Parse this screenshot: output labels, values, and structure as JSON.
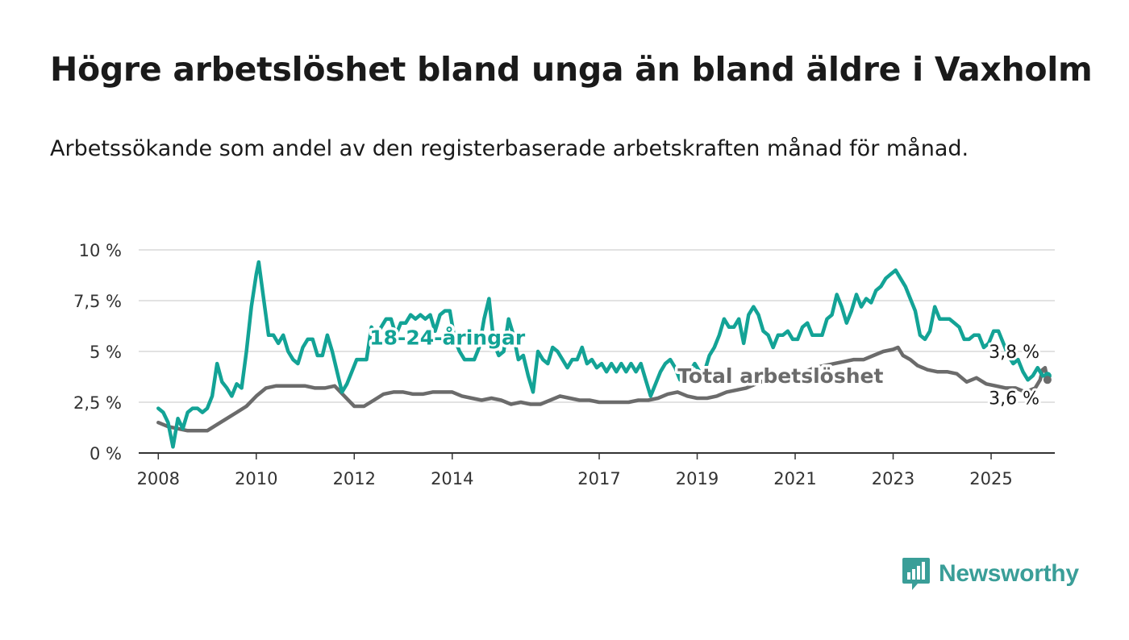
{
  "header": {
    "title": "Högre arbetslöshet bland unga än bland äldre i Vaxholm",
    "subtitle": "Arbetssökande som andel av den registerbaserade arbetskraften månad för månad."
  },
  "brand": {
    "name": "Newsworthy",
    "icon": "bar-chart-speech-bubble-icon",
    "color": "#3a9e98"
  },
  "chart_data": {
    "type": "line",
    "title": "",
    "xlabel": "",
    "ylabel": "",
    "xlim": [
      2007.6,
      2026.3
    ],
    "ylim": [
      0,
      10
    ],
    "x_ticks": [
      2008,
      2010,
      2012,
      2014,
      2017,
      2019,
      2021,
      2023,
      2025
    ],
    "x_tick_labels": [
      "2008",
      "2010",
      "2012",
      "2014",
      "2017",
      "2019",
      "2021",
      "2023",
      "2025"
    ],
    "y_ticks": [
      0,
      2.5,
      5,
      7.5,
      10
    ],
    "y_tick_labels": [
      "0 %",
      "2,5 %",
      "5 %",
      "7,5 %",
      "10 %"
    ],
    "grid": "horizontal",
    "series": [
      {
        "name": "18-24-åringar",
        "color": "#13a396",
        "end_label": "3,8 %",
        "points": [
          [
            2008.0,
            2.2
          ],
          [
            2008.1,
            2.0
          ],
          [
            2008.2,
            1.5
          ],
          [
            2008.3,
            0.3
          ],
          [
            2008.4,
            1.7
          ],
          [
            2008.5,
            1.2
          ],
          [
            2008.6,
            2.0
          ],
          [
            2008.7,
            2.2
          ],
          [
            2008.8,
            2.2
          ],
          [
            2008.9,
            2.0
          ],
          [
            2009.0,
            2.2
          ],
          [
            2009.1,
            2.8
          ],
          [
            2009.2,
            4.4
          ],
          [
            2009.3,
            3.5
          ],
          [
            2009.4,
            3.2
          ],
          [
            2009.5,
            2.8
          ],
          [
            2009.6,
            3.4
          ],
          [
            2009.7,
            3.2
          ],
          [
            2009.8,
            5.0
          ],
          [
            2009.9,
            7.2
          ],
          [
            2010.0,
            8.8
          ],
          [
            2010.05,
            9.4
          ],
          [
            2010.15,
            7.6
          ],
          [
            2010.25,
            5.8
          ],
          [
            2010.35,
            5.8
          ],
          [
            2010.45,
            5.4
          ],
          [
            2010.55,
            5.8
          ],
          [
            2010.65,
            5.0
          ],
          [
            2010.75,
            4.6
          ],
          [
            2010.85,
            4.4
          ],
          [
            2010.95,
            5.2
          ],
          [
            2011.05,
            5.6
          ],
          [
            2011.15,
            5.6
          ],
          [
            2011.25,
            4.8
          ],
          [
            2011.35,
            4.8
          ],
          [
            2011.45,
            5.8
          ],
          [
            2011.55,
            5.0
          ],
          [
            2011.65,
            4.0
          ],
          [
            2011.75,
            3.0
          ],
          [
            2011.85,
            3.4
          ],
          [
            2011.95,
            4.0
          ],
          [
            2012.05,
            4.6
          ],
          [
            2012.15,
            4.6
          ],
          [
            2012.25,
            4.6
          ],
          [
            2012.35,
            6.2
          ],
          [
            2012.45,
            5.8
          ],
          [
            2012.55,
            6.2
          ],
          [
            2012.65,
            6.6
          ],
          [
            2012.75,
            6.6
          ],
          [
            2012.85,
            5.8
          ],
          [
            2012.95,
            6.4
          ],
          [
            2013.05,
            6.4
          ],
          [
            2013.15,
            6.8
          ],
          [
            2013.25,
            6.6
          ],
          [
            2013.35,
            6.8
          ],
          [
            2013.45,
            6.6
          ],
          [
            2013.55,
            6.8
          ],
          [
            2013.65,
            6.0
          ],
          [
            2013.75,
            6.8
          ],
          [
            2013.85,
            7.0
          ],
          [
            2013.95,
            7.0
          ],
          [
            2014.05,
            5.6
          ],
          [
            2014.15,
            5.0
          ],
          [
            2014.25,
            4.6
          ],
          [
            2014.35,
            4.6
          ],
          [
            2014.45,
            4.6
          ],
          [
            2014.55,
            5.2
          ],
          [
            2014.65,
            6.6
          ],
          [
            2014.75,
            7.6
          ],
          [
            2014.85,
            5.4
          ],
          [
            2014.95,
            4.8
          ],
          [
            2015.05,
            5.0
          ],
          [
            2015.15,
            6.6
          ],
          [
            2015.25,
            5.8
          ],
          [
            2015.35,
            4.6
          ],
          [
            2015.45,
            4.8
          ],
          [
            2015.55,
            3.8
          ],
          [
            2015.65,
            3.0
          ],
          [
            2015.75,
            5.0
          ],
          [
            2015.85,
            4.6
          ],
          [
            2015.95,
            4.4
          ],
          [
            2016.05,
            5.2
          ],
          [
            2016.15,
            5.0
          ],
          [
            2016.25,
            4.6
          ],
          [
            2016.35,
            4.2
          ],
          [
            2016.45,
            4.6
          ],
          [
            2016.55,
            4.6
          ],
          [
            2016.65,
            5.2
          ],
          [
            2016.75,
            4.4
          ],
          [
            2016.85,
            4.6
          ],
          [
            2016.95,
            4.2
          ],
          [
            2017.05,
            4.4
          ],
          [
            2017.15,
            4.0
          ],
          [
            2017.25,
            4.4
          ],
          [
            2017.35,
            4.0
          ],
          [
            2017.45,
            4.4
          ],
          [
            2017.55,
            4.0
          ],
          [
            2017.65,
            4.4
          ],
          [
            2017.75,
            4.0
          ],
          [
            2017.85,
            4.4
          ],
          [
            2017.95,
            3.6
          ],
          [
            2018.05,
            2.8
          ],
          [
            2018.15,
            3.4
          ],
          [
            2018.25,
            4.0
          ],
          [
            2018.35,
            4.4
          ],
          [
            2018.45,
            4.6
          ],
          [
            2018.55,
            4.2
          ],
          [
            2018.65,
            3.6
          ],
          [
            2018.75,
            4.0
          ],
          [
            2018.85,
            4.0
          ],
          [
            2018.95,
            4.4
          ],
          [
            2019.05,
            4.0
          ],
          [
            2019.15,
            4.0
          ],
          [
            2019.25,
            4.8
          ],
          [
            2019.35,
            5.2
          ],
          [
            2019.45,
            5.8
          ],
          [
            2019.55,
            6.6
          ],
          [
            2019.65,
            6.2
          ],
          [
            2019.75,
            6.2
          ],
          [
            2019.85,
            6.6
          ],
          [
            2019.95,
            5.4
          ],
          [
            2020.05,
            6.8
          ],
          [
            2020.15,
            7.2
          ],
          [
            2020.25,
            6.8
          ],
          [
            2020.35,
            6.0
          ],
          [
            2020.45,
            5.8
          ],
          [
            2020.55,
            5.2
          ],
          [
            2020.65,
            5.8
          ],
          [
            2020.75,
            5.8
          ],
          [
            2020.85,
            6.0
          ],
          [
            2020.95,
            5.6
          ],
          [
            2021.05,
            5.6
          ],
          [
            2021.15,
            6.2
          ],
          [
            2021.25,
            6.4
          ],
          [
            2021.35,
            5.8
          ],
          [
            2021.45,
            5.8
          ],
          [
            2021.55,
            5.8
          ],
          [
            2021.65,
            6.6
          ],
          [
            2021.75,
            6.8
          ],
          [
            2021.85,
            7.8
          ],
          [
            2021.95,
            7.2
          ],
          [
            2022.05,
            6.4
          ],
          [
            2022.15,
            7.0
          ],
          [
            2022.25,
            7.8
          ],
          [
            2022.35,
            7.2
          ],
          [
            2022.45,
            7.6
          ],
          [
            2022.55,
            7.4
          ],
          [
            2022.65,
            8.0
          ],
          [
            2022.75,
            8.2
          ],
          [
            2022.85,
            8.6
          ],
          [
            2022.95,
            8.8
          ],
          [
            2023.05,
            9.0
          ],
          [
            2023.15,
            8.6
          ],
          [
            2023.25,
            8.2
          ],
          [
            2023.35,
            7.6
          ],
          [
            2023.45,
            7.0
          ],
          [
            2023.55,
            5.8
          ],
          [
            2023.65,
            5.6
          ],
          [
            2023.75,
            6.0
          ],
          [
            2023.85,
            7.2
          ],
          [
            2023.95,
            6.6
          ],
          [
            2024.05,
            6.6
          ],
          [
            2024.15,
            6.6
          ],
          [
            2024.25,
            6.4
          ],
          [
            2024.35,
            6.2
          ],
          [
            2024.45,
            5.6
          ],
          [
            2024.55,
            5.6
          ],
          [
            2024.65,
            5.8
          ],
          [
            2024.75,
            5.8
          ],
          [
            2024.85,
            5.2
          ],
          [
            2024.95,
            5.4
          ],
          [
            2025.05,
            6.0
          ],
          [
            2025.15,
            6.0
          ],
          [
            2025.25,
            5.4
          ],
          [
            2025.35,
            4.8
          ],
          [
            2025.45,
            4.4
          ],
          [
            2025.55,
            4.6
          ],
          [
            2025.65,
            4.0
          ],
          [
            2025.75,
            3.6
          ],
          [
            2025.85,
            3.8
          ],
          [
            2025.95,
            4.2
          ],
          [
            2026.05,
            3.8
          ],
          [
            2026.15,
            3.8
          ]
        ]
      },
      {
        "name": "Total arbetslöshet",
        "color": "#6b6b6b",
        "end_label": "3,6 %",
        "points": [
          [
            2008.0,
            1.5
          ],
          [
            2008.2,
            1.3
          ],
          [
            2008.4,
            1.2
          ],
          [
            2008.6,
            1.1
          ],
          [
            2008.8,
            1.1
          ],
          [
            2009.0,
            1.1
          ],
          [
            2009.2,
            1.4
          ],
          [
            2009.4,
            1.7
          ],
          [
            2009.6,
            2.0
          ],
          [
            2009.8,
            2.3
          ],
          [
            2010.0,
            2.8
          ],
          [
            2010.2,
            3.2
          ],
          [
            2010.4,
            3.3
          ],
          [
            2010.6,
            3.3
          ],
          [
            2010.8,
            3.3
          ],
          [
            2011.0,
            3.3
          ],
          [
            2011.2,
            3.2
          ],
          [
            2011.4,
            3.2
          ],
          [
            2011.6,
            3.3
          ],
          [
            2011.8,
            2.8
          ],
          [
            2012.0,
            2.3
          ],
          [
            2012.2,
            2.3
          ],
          [
            2012.4,
            2.6
          ],
          [
            2012.6,
            2.9
          ],
          [
            2012.8,
            3.0
          ],
          [
            2013.0,
            3.0
          ],
          [
            2013.2,
            2.9
          ],
          [
            2013.4,
            2.9
          ],
          [
            2013.6,
            3.0
          ],
          [
            2013.8,
            3.0
          ],
          [
            2014.0,
            3.0
          ],
          [
            2014.2,
            2.8
          ],
          [
            2014.4,
            2.7
          ],
          [
            2014.6,
            2.6
          ],
          [
            2014.8,
            2.7
          ],
          [
            2015.0,
            2.6
          ],
          [
            2015.2,
            2.4
          ],
          [
            2015.4,
            2.5
          ],
          [
            2015.6,
            2.4
          ],
          [
            2015.8,
            2.4
          ],
          [
            2016.0,
            2.6
          ],
          [
            2016.2,
            2.8
          ],
          [
            2016.4,
            2.7
          ],
          [
            2016.6,
            2.6
          ],
          [
            2016.8,
            2.6
          ],
          [
            2017.0,
            2.5
          ],
          [
            2017.2,
            2.5
          ],
          [
            2017.4,
            2.5
          ],
          [
            2017.6,
            2.5
          ],
          [
            2017.8,
            2.6
          ],
          [
            2018.0,
            2.6
          ],
          [
            2018.2,
            2.7
          ],
          [
            2018.4,
            2.9
          ],
          [
            2018.6,
            3.0
          ],
          [
            2018.8,
            2.8
          ],
          [
            2019.0,
            2.7
          ],
          [
            2019.2,
            2.7
          ],
          [
            2019.4,
            2.8
          ],
          [
            2019.6,
            3.0
          ],
          [
            2019.8,
            3.1
          ],
          [
            2020.0,
            3.2
          ],
          [
            2020.2,
            3.4
          ],
          [
            2020.4,
            3.6
          ],
          [
            2020.6,
            3.8
          ],
          [
            2020.8,
            3.9
          ],
          [
            2021.0,
            4.0
          ],
          [
            2021.2,
            4.0
          ],
          [
            2021.4,
            4.2
          ],
          [
            2021.6,
            4.3
          ],
          [
            2021.8,
            4.4
          ],
          [
            2022.0,
            4.5
          ],
          [
            2022.2,
            4.6
          ],
          [
            2022.4,
            4.6
          ],
          [
            2022.6,
            4.8
          ],
          [
            2022.8,
            5.0
          ],
          [
            2023.0,
            5.1
          ],
          [
            2023.1,
            5.2
          ],
          [
            2023.2,
            4.8
          ],
          [
            2023.35,
            4.6
          ],
          [
            2023.5,
            4.3
          ],
          [
            2023.7,
            4.1
          ],
          [
            2023.9,
            4.0
          ],
          [
            2024.1,
            4.0
          ],
          [
            2024.3,
            3.9
          ],
          [
            2024.5,
            3.5
          ],
          [
            2024.7,
            3.7
          ],
          [
            2024.9,
            3.4
          ],
          [
            2025.1,
            3.3
          ],
          [
            2025.3,
            3.2
          ],
          [
            2025.5,
            3.2
          ],
          [
            2025.7,
            3.0
          ],
          [
            2025.8,
            3.1
          ],
          [
            2025.9,
            3.2
          ],
          [
            2026.0,
            3.6
          ],
          [
            2026.05,
            4.1
          ],
          [
            2026.1,
            4.2
          ],
          [
            2026.15,
            3.6
          ]
        ]
      }
    ],
    "annotations": [
      {
        "text": "18-24-åringar",
        "series": 0,
        "x": 2013.9,
        "y": 5.7
      },
      {
        "text": "Total arbetslöshet",
        "series": 1,
        "x": 2020.7,
        "y": 3.8
      }
    ]
  }
}
